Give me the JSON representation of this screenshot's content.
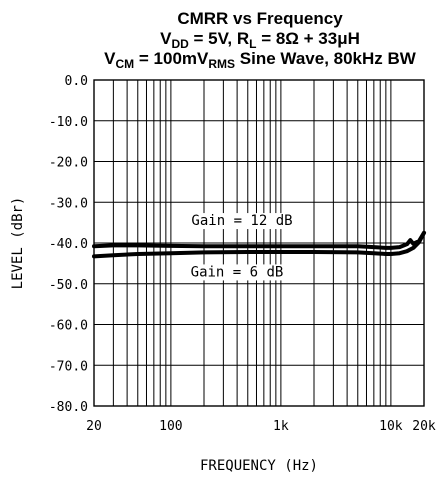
{
  "chart_data": {
    "type": "line",
    "title": {
      "line1": "CMRR vs Frequency",
      "line2": {
        "p1": "V",
        "s1": "DD",
        "p2": " = 5V, R",
        "s2": "L",
        "p3": " = 8Ω + 33μH"
      },
      "line3": {
        "p1": "V",
        "s1": "CM",
        "p2": " = 100mV",
        "s2": "RMS",
        "p3": " Sine Wave, 80kHz BW"
      }
    },
    "xlabel": "FREQUENCY (Hz)",
    "ylabel": "LEVEL (dBr)",
    "xscale": "log",
    "xlim": [
      20,
      20000
    ],
    "ylim": [
      -80,
      0
    ],
    "grid": true,
    "x_ticks": [
      {
        "value": 20,
        "label": "20"
      },
      {
        "value": 100,
        "label": "100"
      },
      {
        "value": 1000,
        "label": "1k"
      },
      {
        "value": 10000,
        "label": "10k"
      },
      {
        "value": 20000,
        "label": "20k"
      }
    ],
    "y_ticks": [
      {
        "value": 0,
        "label": "0.0"
      },
      {
        "value": -10,
        "label": "-10.0"
      },
      {
        "value": -20,
        "label": "-20.0"
      },
      {
        "value": -30,
        "label": "-30.0"
      },
      {
        "value": -40,
        "label": "-40.0"
      },
      {
        "value": -50,
        "label": "-50.0"
      },
      {
        "value": -60,
        "label": "-60.0"
      },
      {
        "value": -70,
        "label": "-70.0"
      },
      {
        "value": -80,
        "label": "-80.0"
      }
    ],
    "series": [
      {
        "name": "Gain = 12 dB",
        "x": [
          20,
          30,
          50,
          100,
          200,
          500,
          1000,
          2000,
          5000,
          7000,
          9000,
          10000,
          12000,
          14000,
          15000,
          16000,
          18000,
          20000
        ],
        "y": [
          -40.8,
          -40.6,
          -40.6,
          -40.7,
          -40.8,
          -40.8,
          -40.8,
          -40.8,
          -40.8,
          -41.0,
          -41.2,
          -41.2,
          -41.0,
          -40.3,
          -39.3,
          -40.2,
          -39.5,
          -37.5
        ]
      },
      {
        "name": "Gain = 6 dB",
        "x": [
          20,
          30,
          50,
          100,
          200,
          500,
          1000,
          2000,
          5000,
          7000,
          9000,
          10000,
          12000,
          14000,
          16000,
          18000,
          20000
        ],
        "y": [
          -43.3,
          -43.0,
          -42.7,
          -42.5,
          -42.3,
          -42.2,
          -42.2,
          -42.2,
          -42.3,
          -42.5,
          -42.7,
          -42.7,
          -42.5,
          -42.0,
          -41.2,
          -39.8,
          -37.5
        ]
      }
    ],
    "annotations": [
      {
        "text": "Gain = 12 dB",
        "series": 0
      },
      {
        "text": "Gain = 6 dB",
        "series": 1
      }
    ]
  }
}
